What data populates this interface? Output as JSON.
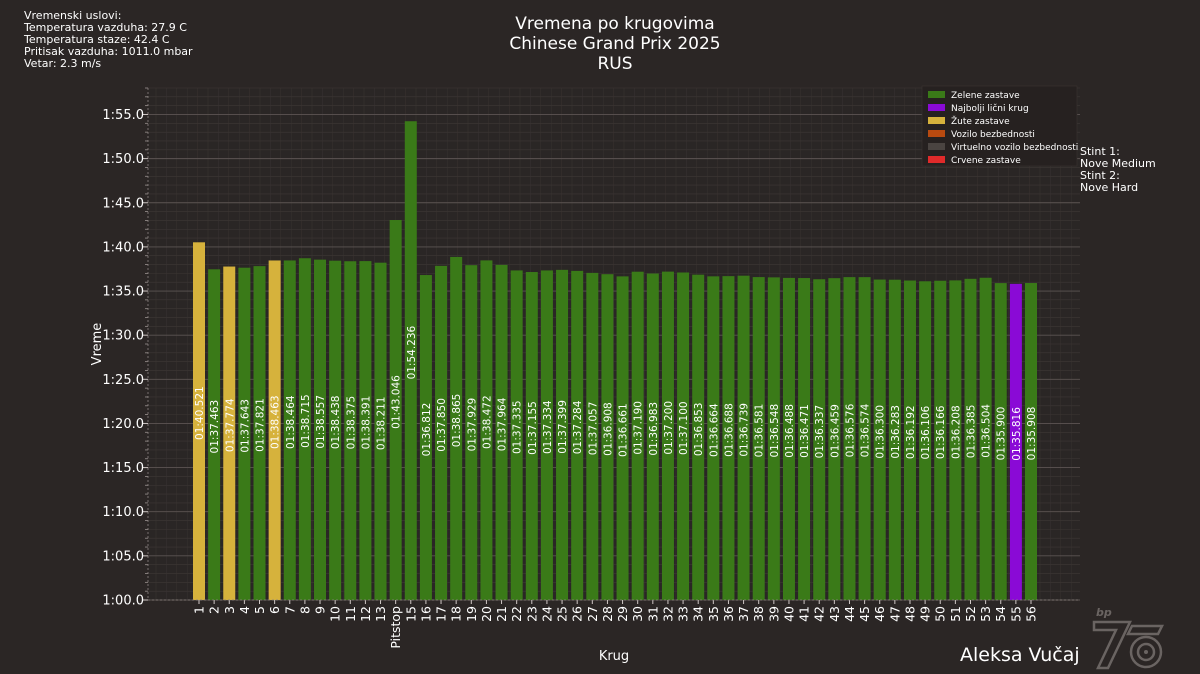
{
  "weather": {
    "heading": "Vremenski uslovi:",
    "air_temp": "Temperatura vazduha: 27.9 C",
    "track_temp": "Temperatura staze: 42.4 C",
    "pressure": "Pritisak vazduha: 1011.0 mbar",
    "wind": "Vetar: 2.3 m/s"
  },
  "title": {
    "line1": "Vremena po krugovima",
    "line2": "Chinese Grand Prix 2025",
    "line3": "RUS"
  },
  "stints": {
    "s1_label": "Stint 1:",
    "s1_tyre": "Nove Medium",
    "s2_label": "Stint 2:",
    "s2_tyre": "Nove Hard"
  },
  "author": "Aleksa Vučaj",
  "logo_text": "bp",
  "colors": {
    "green": "#3a7a18",
    "yellow": "#d6b23c",
    "purple": "#8a0ad6",
    "sc": "#b84a10",
    "vsc": "#4a4441",
    "red": "#e02a2a"
  },
  "chart_data": {
    "type": "bar",
    "xlabel": "Krug",
    "ylabel": "Vreme",
    "ylim": [
      60,
      118
    ],
    "yticks": [
      {
        "v": 60,
        "label": "1:00.0"
      },
      {
        "v": 65,
        "label": "1:05.0"
      },
      {
        "v": 70,
        "label": "1:10.0"
      },
      {
        "v": 75,
        "label": "1:15.0"
      },
      {
        "v": 80,
        "label": "1:20.0"
      },
      {
        "v": 85,
        "label": "1:25.0"
      },
      {
        "v": 90,
        "label": "1:30.0"
      },
      {
        "v": 95,
        "label": "1:35.0"
      },
      {
        "v": 100,
        "label": "1:40.0"
      },
      {
        "v": 105,
        "label": "1:45.0"
      },
      {
        "v": 110,
        "label": "1:50.0"
      },
      {
        "v": 115,
        "label": "1:55.0"
      }
    ],
    "legend": [
      {
        "label": "Zelene zastave",
        "color": "#3a7a18"
      },
      {
        "label": "Najbolji lični krug",
        "color": "#8a0ad6"
      },
      {
        "label": "Žute zastave",
        "color": "#d6b23c"
      },
      {
        "label": "Vozilo bezbednosti",
        "color": "#b84a10"
      },
      {
        "label": "Virtuelno vozilo bezbednosti",
        "color": "#4a4441"
      },
      {
        "label": "Crvene zastave",
        "color": "#e02a2a"
      }
    ],
    "laps": [
      {
        "lap": "1",
        "time": "01:40.521",
        "sec": 100.521,
        "flag": "yellow"
      },
      {
        "lap": "2",
        "time": "01:37.463",
        "sec": 97.463,
        "flag": "green"
      },
      {
        "lap": "3",
        "time": "01:37.774",
        "sec": 97.774,
        "flag": "yellow"
      },
      {
        "lap": "4",
        "time": "01:37.643",
        "sec": 97.643,
        "flag": "green"
      },
      {
        "lap": "5",
        "time": "01:37.821",
        "sec": 97.821,
        "flag": "green"
      },
      {
        "lap": "6",
        "time": "01:38.463",
        "sec": 98.463,
        "flag": "yellow"
      },
      {
        "lap": "7",
        "time": "01:38.464",
        "sec": 98.464,
        "flag": "green"
      },
      {
        "lap": "8",
        "time": "01:38.715",
        "sec": 98.715,
        "flag": "green"
      },
      {
        "lap": "9",
        "time": "01:38.557",
        "sec": 98.557,
        "flag": "green"
      },
      {
        "lap": "10",
        "time": "01:38.438",
        "sec": 98.438,
        "flag": "green"
      },
      {
        "lap": "11",
        "time": "01:38.375",
        "sec": 98.375,
        "flag": "green"
      },
      {
        "lap": "12",
        "time": "01:38.391",
        "sec": 98.391,
        "flag": "green"
      },
      {
        "lap": "13",
        "time": "01:38.211",
        "sec": 98.211,
        "flag": "green"
      },
      {
        "lap": "Pitstop",
        "time": "01:43.046",
        "sec": 103.046,
        "flag": "green"
      },
      {
        "lap": "15",
        "time": "01:54.236",
        "sec": 114.236,
        "flag": "green"
      },
      {
        "lap": "16",
        "time": "01:36.812",
        "sec": 96.812,
        "flag": "green"
      },
      {
        "lap": "17",
        "time": "01:37.850",
        "sec": 97.85,
        "flag": "green"
      },
      {
        "lap": "18",
        "time": "01:38.865",
        "sec": 98.865,
        "flag": "green"
      },
      {
        "lap": "19",
        "time": "01:37.929",
        "sec": 97.929,
        "flag": "green"
      },
      {
        "lap": "20",
        "time": "01:38.472",
        "sec": 98.472,
        "flag": "green"
      },
      {
        "lap": "21",
        "time": "01:37.964",
        "sec": 97.964,
        "flag": "green"
      },
      {
        "lap": "22",
        "time": "01:37.335",
        "sec": 97.335,
        "flag": "green"
      },
      {
        "lap": "23",
        "time": "01:37.155",
        "sec": 97.155,
        "flag": "green"
      },
      {
        "lap": "24",
        "time": "01:37.334",
        "sec": 97.334,
        "flag": "green"
      },
      {
        "lap": "25",
        "time": "01:37.399",
        "sec": 97.399,
        "flag": "green"
      },
      {
        "lap": "26",
        "time": "01:37.284",
        "sec": 97.284,
        "flag": "green"
      },
      {
        "lap": "27",
        "time": "01:37.057",
        "sec": 97.057,
        "flag": "green"
      },
      {
        "lap": "28",
        "time": "01:36.908",
        "sec": 96.908,
        "flag": "green"
      },
      {
        "lap": "29",
        "time": "01:36.661",
        "sec": 96.661,
        "flag": "green"
      },
      {
        "lap": "30",
        "time": "01:37.190",
        "sec": 97.19,
        "flag": "green"
      },
      {
        "lap": "31",
        "time": "01:36.983",
        "sec": 96.983,
        "flag": "green"
      },
      {
        "lap": "32",
        "time": "01:37.200",
        "sec": 97.2,
        "flag": "green"
      },
      {
        "lap": "33",
        "time": "01:37.100",
        "sec": 97.1,
        "flag": "green"
      },
      {
        "lap": "34",
        "time": "01:36.853",
        "sec": 96.853,
        "flag": "green"
      },
      {
        "lap": "35",
        "time": "01:36.664",
        "sec": 96.664,
        "flag": "green"
      },
      {
        "lap": "36",
        "time": "01:36.688",
        "sec": 96.688,
        "flag": "green"
      },
      {
        "lap": "37",
        "time": "01:36.739",
        "sec": 96.739,
        "flag": "green"
      },
      {
        "lap": "38",
        "time": "01:36.581",
        "sec": 96.581,
        "flag": "green"
      },
      {
        "lap": "39",
        "time": "01:36.548",
        "sec": 96.548,
        "flag": "green"
      },
      {
        "lap": "40",
        "time": "01:36.488",
        "sec": 96.488,
        "flag": "green"
      },
      {
        "lap": "41",
        "time": "01:36.471",
        "sec": 96.471,
        "flag": "green"
      },
      {
        "lap": "42",
        "time": "01:36.337",
        "sec": 96.337,
        "flag": "green"
      },
      {
        "lap": "43",
        "time": "01:36.459",
        "sec": 96.459,
        "flag": "green"
      },
      {
        "lap": "44",
        "time": "01:36.576",
        "sec": 96.576,
        "flag": "green"
      },
      {
        "lap": "45",
        "time": "01:36.574",
        "sec": 96.574,
        "flag": "green"
      },
      {
        "lap": "46",
        "time": "01:36.300",
        "sec": 96.3,
        "flag": "green"
      },
      {
        "lap": "47",
        "time": "01:36.283",
        "sec": 96.283,
        "flag": "green"
      },
      {
        "lap": "48",
        "time": "01:36.192",
        "sec": 96.192,
        "flag": "green"
      },
      {
        "lap": "49",
        "time": "01:36.106",
        "sec": 96.106,
        "flag": "green"
      },
      {
        "lap": "50",
        "time": "01:36.166",
        "sec": 96.166,
        "flag": "green"
      },
      {
        "lap": "51",
        "time": "01:36.208",
        "sec": 96.208,
        "flag": "green"
      },
      {
        "lap": "52",
        "time": "01:36.385",
        "sec": 96.385,
        "flag": "green"
      },
      {
        "lap": "53",
        "time": "01:36.504",
        "sec": 96.504,
        "flag": "green"
      },
      {
        "lap": "54",
        "time": "01:35.900",
        "sec": 95.9,
        "flag": "green"
      },
      {
        "lap": "55",
        "time": "01:35.816",
        "sec": 95.816,
        "flag": "purple"
      },
      {
        "lap": "56",
        "time": "01:35.908",
        "sec": 95.908,
        "flag": "green"
      }
    ]
  }
}
